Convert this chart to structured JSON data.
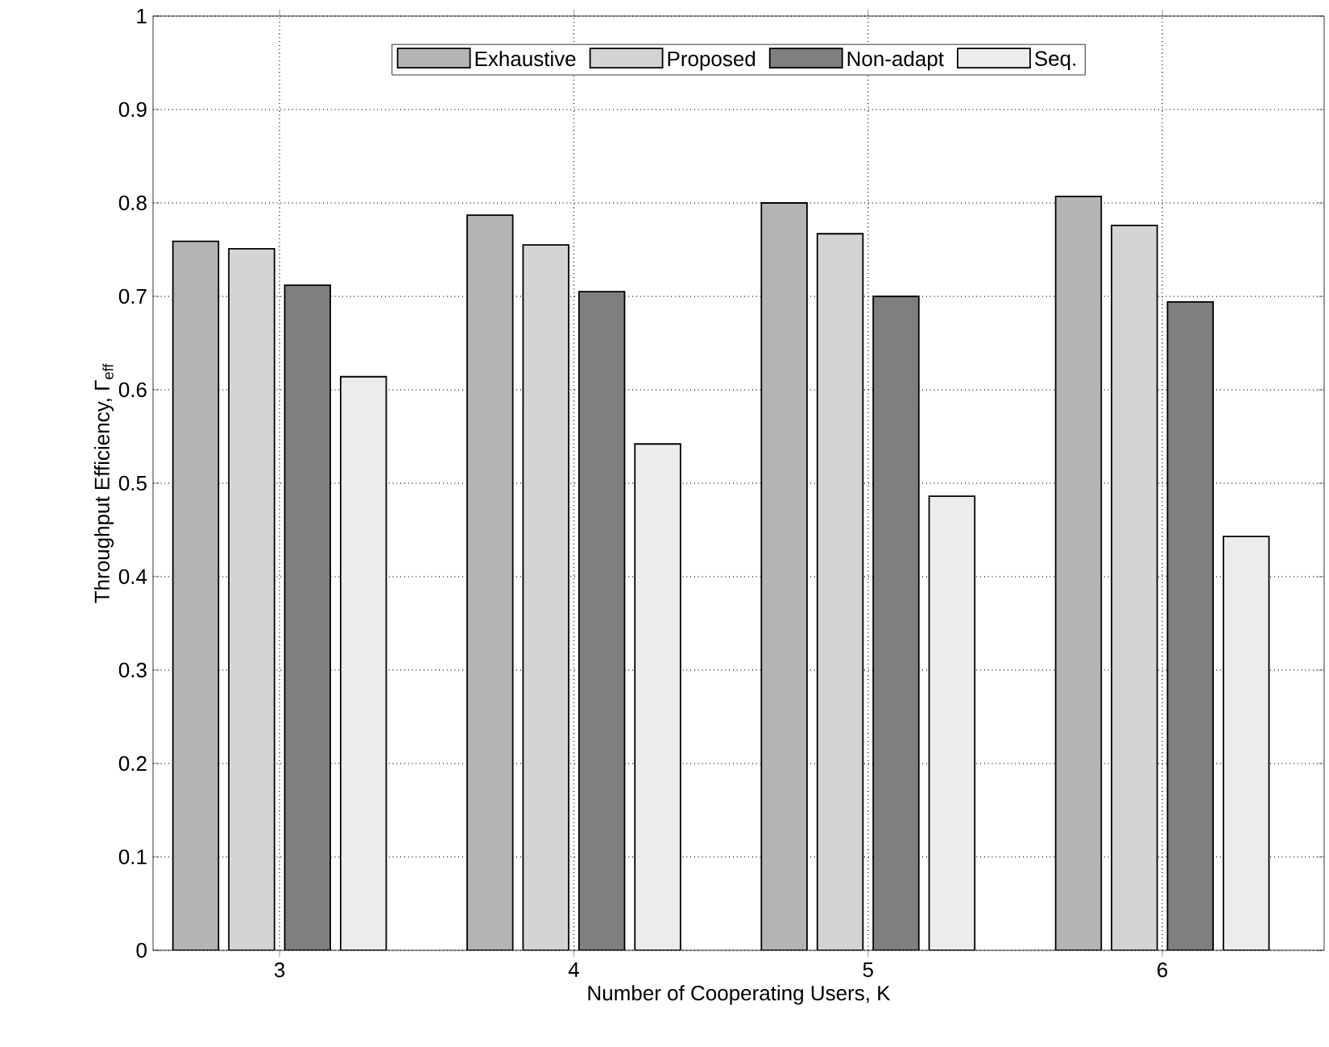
{
  "chart_data": {
    "type": "bar",
    "xlabel": "Number of Cooperating Users, K",
    "ylabel": "Throughput Efficiency, Γ$_{eff}$",
    "categories": [
      "3",
      "4",
      "5",
      "6"
    ],
    "series": [
      {
        "name": "Exhaustive",
        "color": "#b4b4b4",
        "values": [
          0.759,
          0.787,
          0.8,
          0.807
        ]
      },
      {
        "name": "Proposed",
        "color": "#d4d4d4",
        "values": [
          0.751,
          0.755,
          0.767,
          0.776
        ]
      },
      {
        "name": "Non-adapt",
        "color": "#7f7f7f",
        "values": [
          0.712,
          0.705,
          0.7,
          0.694
        ]
      },
      {
        "name": "Seq.",
        "color": "#ececec",
        "values": [
          0.614,
          0.542,
          0.486,
          0.443
        ]
      }
    ],
    "ylim": [
      0,
      1
    ],
    "yticks": [
      0,
      0.1,
      0.2,
      0.3,
      0.4,
      0.5,
      0.6,
      0.7,
      0.8,
      0.9,
      1
    ],
    "grid": true,
    "legend": "top"
  }
}
